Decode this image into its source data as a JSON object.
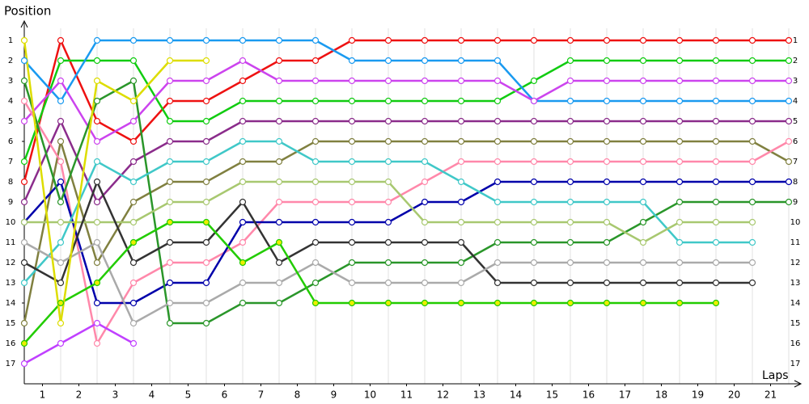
{
  "chart_data": {
    "type": "line",
    "y_label": "Position",
    "x_label": "Laps",
    "x": [
      0,
      1,
      2,
      3,
      4,
      5,
      6,
      7,
      8,
      9,
      10,
      11,
      12,
      13,
      14,
      15,
      16,
      17,
      18,
      19,
      20,
      21
    ],
    "xlim": [
      0,
      21
    ],
    "ylim": [
      0,
      18
    ],
    "y_inverted": true,
    "xticks": [
      {
        "value": 0.5,
        "label": "1"
      },
      {
        "value": 1.5,
        "label": "2"
      },
      {
        "value": 2.5,
        "label": "3"
      },
      {
        "value": 3.5,
        "label": "4"
      },
      {
        "value": 4.5,
        "label": "5"
      },
      {
        "value": 5.5,
        "label": "6"
      },
      {
        "value": 6.5,
        "label": "7"
      },
      {
        "value": 7.5,
        "label": "8"
      },
      {
        "value": 8.5,
        "label": "9"
      },
      {
        "value": 9.5,
        "label": "10"
      },
      {
        "value": 10.5,
        "label": "11"
      },
      {
        "value": 11.5,
        "label": "12"
      },
      {
        "value": 12.5,
        "label": "13"
      },
      {
        "value": 13.5,
        "label": "14"
      },
      {
        "value": 14.5,
        "label": "15"
      },
      {
        "value": 15.5,
        "label": "16"
      },
      {
        "value": 16.5,
        "label": "17"
      },
      {
        "value": 17.5,
        "label": "18"
      },
      {
        "value": 18.5,
        "label": "19"
      },
      {
        "value": 19.5,
        "label": "20"
      },
      {
        "value": 20.5,
        "label": "21"
      }
    ],
    "yticks": [
      1,
      2,
      3,
      4,
      5,
      6,
      7,
      8,
      9,
      10,
      11,
      12,
      13,
      14,
      15,
      16,
      17
    ],
    "series": [
      {
        "color": "#ee1111",
        "values": [
          8,
          1,
          5,
          6,
          4,
          4,
          3,
          2,
          2,
          1,
          1,
          1,
          1,
          1,
          1,
          1,
          1,
          1,
          1,
          1,
          1,
          1
        ]
      },
      {
        "color": "#11cc11",
        "values": [
          7,
          2,
          2,
          2,
          5,
          5,
          4,
          4,
          4,
          4,
          4,
          4,
          4,
          4,
          3,
          2,
          2,
          2,
          2,
          2,
          2,
          2
        ]
      },
      {
        "color": "#1a9af0",
        "values": [
          2,
          4,
          1,
          1,
          1,
          1,
          1,
          1,
          1,
          2,
          2,
          2,
          2,
          2,
          4,
          4,
          4,
          4,
          4,
          4,
          4,
          4
        ]
      },
      {
        "color": "#cc44ee",
        "values": [
          5,
          3,
          6,
          5,
          3,
          3,
          2,
          3,
          3,
          3,
          3,
          3,
          3,
          3,
          4,
          3,
          3,
          3,
          3,
          3,
          3,
          3
        ]
      },
      {
        "color": "#8b2c8b",
        "values": [
          9,
          5,
          9,
          7,
          6,
          6,
          5,
          5,
          5,
          5,
          5,
          5,
          5,
          5,
          5,
          5,
          5,
          5,
          5,
          5,
          5,
          5
        ]
      },
      {
        "color": "#808040",
        "values": [
          15,
          6,
          12,
          9,
          8,
          8,
          7,
          7,
          6,
          6,
          6,
          6,
          6,
          6,
          6,
          6,
          6,
          6,
          6,
          6,
          6,
          7
        ]
      },
      {
        "color": "#ff88aa",
        "values": [
          4,
          7,
          16,
          13,
          12,
          12,
          11,
          9,
          9,
          9,
          9,
          8,
          7,
          7,
          7,
          7,
          7,
          7,
          7,
          7,
          7,
          6
        ]
      },
      {
        "color": "#0000aa",
        "values": [
          10,
          8,
          14,
          14,
          13,
          13,
          10,
          10,
          10,
          10,
          10,
          9,
          9,
          8,
          8,
          8,
          8,
          8,
          8,
          8,
          8,
          8
        ]
      },
      {
        "color": "#2a962a",
        "values": [
          3,
          9,
          4,
          3,
          15,
          15,
          14,
          14,
          13,
          12,
          12,
          12,
          12,
          11,
          11,
          11,
          11,
          10,
          9,
          9,
          9,
          9
        ]
      },
      {
        "color": "#40c8c8",
        "values": [
          13,
          11,
          7,
          8,
          7,
          7,
          6,
          6,
          7,
          7,
          7,
          7,
          8,
          9,
          9,
          9,
          9,
          9,
          11,
          11,
          11,
          null
        ]
      },
      {
        "color": "#a8c870",
        "values": [
          10,
          10,
          10,
          10,
          9,
          9,
          8,
          8,
          8,
          8,
          8,
          10,
          10,
          10,
          10,
          10,
          10,
          11,
          10,
          10,
          10,
          null
        ]
      },
      {
        "color": "#333333",
        "values": [
          12,
          13,
          8,
          12,
          11,
          11,
          9,
          12,
          11,
          11,
          11,
          11,
          11,
          13,
          13,
          13,
          13,
          13,
          13,
          13,
          13,
          null
        ]
      },
      {
        "color": "#aaaaaa",
        "values": [
          11,
          12,
          11,
          15,
          14,
          14,
          13,
          13,
          12,
          13,
          13,
          13,
          13,
          12,
          12,
          12,
          12,
          12,
          12,
          12,
          12,
          null
        ]
      },
      {
        "color": "#22cc00",
        "marker_fill": "#eeee00",
        "values": [
          16,
          14,
          13,
          11,
          10,
          10,
          12,
          11,
          14,
          14,
          14,
          14,
          14,
          14,
          14,
          14,
          14,
          14,
          14,
          14,
          null,
          null
        ]
      },
      {
        "color": "#dddd00",
        "values": [
          1,
          15,
          3,
          4,
          2,
          2,
          null,
          null,
          null,
          null,
          null,
          null,
          null,
          null,
          null,
          null,
          null,
          null,
          null,
          null,
          null,
          null
        ]
      },
      {
        "color": "#c040ff",
        "values": [
          17,
          16,
          15,
          16,
          null,
          null,
          null,
          null,
          null,
          null,
          null,
          null,
          null,
          null,
          null,
          null,
          null,
          null,
          null,
          null,
          null,
          null
        ]
      }
    ]
  }
}
